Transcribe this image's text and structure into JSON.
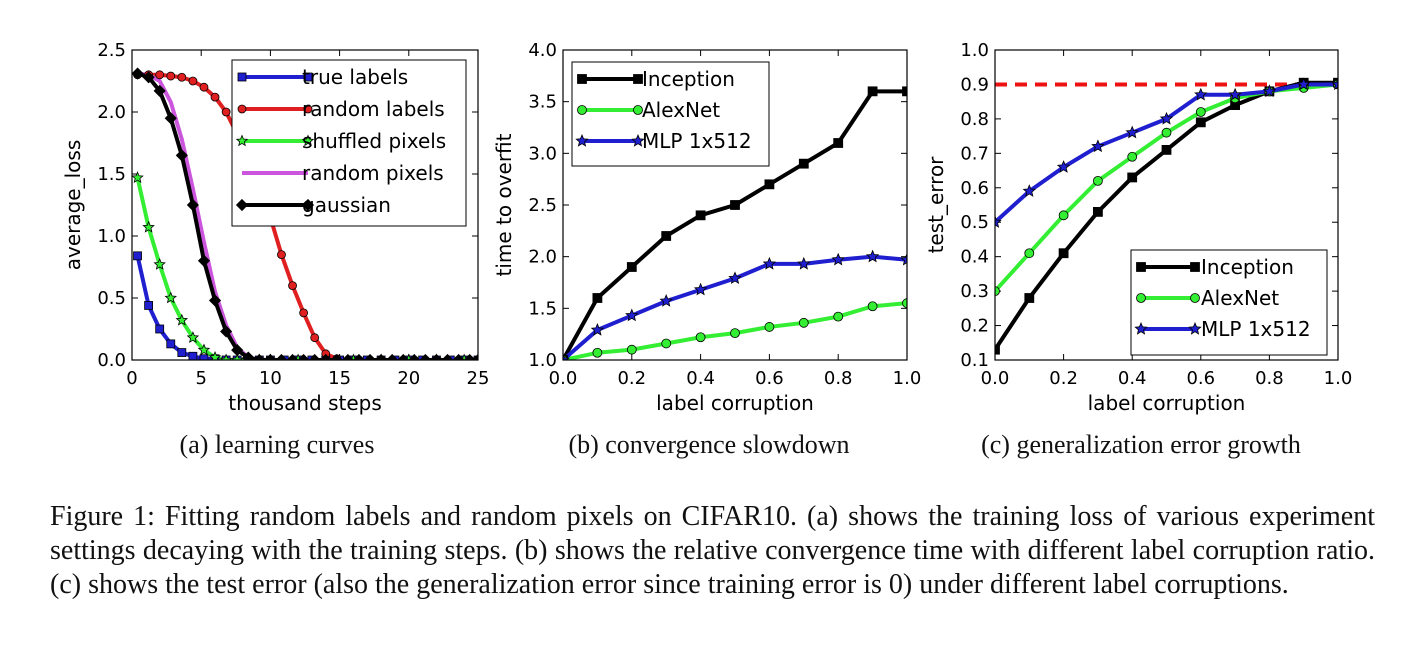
{
  "caption": "Figure 1: Fitting random labels and random pixels on CIFAR10. (a) shows the training loss of various experiment settings decaying with the training steps. (b) shows the relative convergence time with different label corruption ratio. (c) shows the test error (also the generalization error since training error is 0) under different label corruptions.",
  "chart_data": [
    {
      "type": "line",
      "subcaption": "(a) learning curves",
      "xlabel": "thousand steps",
      "ylabel": "average_loss",
      "xlim": [
        0,
        25
      ],
      "ylim": [
        0,
        2.5
      ],
      "xticks": [
        0,
        5,
        10,
        15,
        20,
        25
      ],
      "yticks": [
        0.0,
        0.5,
        1.0,
        1.5,
        2.0,
        2.5
      ],
      "grid": false,
      "legend": "top-right",
      "series": [
        {
          "name": "true labels",
          "color": "#1f1fd0",
          "marker": "square",
          "x": [
            0.4,
            1.2,
            2.0,
            2.8,
            3.6,
            4.4,
            5.2,
            6.0,
            6.8,
            7.6,
            8.4,
            9.2,
            10,
            11,
            12,
            13,
            14,
            15,
            16,
            17,
            18,
            19,
            20,
            21,
            22,
            23,
            24,
            25
          ],
          "y": [
            0.84,
            0.44,
            0.25,
            0.13,
            0.06,
            0.03,
            0.01,
            0.01,
            0.0,
            0.0,
            0.0,
            0.0,
            0.0,
            0.0,
            0.0,
            0.0,
            0.0,
            0.0,
            0.0,
            0.0,
            0.0,
            0.0,
            0.0,
            0.0,
            0.0,
            0.0,
            0.0,
            0.0
          ]
        },
        {
          "name": "random labels",
          "color": "#e02020",
          "marker": "circle",
          "x": [
            0.4,
            1.2,
            2.0,
            2.8,
            3.6,
            4.4,
            5.2,
            6.0,
            6.8,
            7.6,
            8.4,
            9.2,
            10.0,
            10.8,
            11.6,
            12.4,
            13.2,
            14.0,
            14.8,
            15.6,
            16.4,
            17.2,
            18.0,
            18.8,
            19.6,
            20.4,
            21.2,
            22.0,
            22.8,
            23.6,
            24.4,
            25.0
          ],
          "y": [
            2.3,
            2.3,
            2.3,
            2.29,
            2.28,
            2.25,
            2.2,
            2.12,
            2.0,
            1.82,
            1.6,
            1.38,
            1.15,
            0.85,
            0.6,
            0.38,
            0.18,
            0.05,
            0.01,
            0.0,
            0.0,
            0.0,
            0.0,
            0.0,
            0.0,
            0.0,
            0.0,
            0.0,
            0.0,
            0.0,
            0.0,
            0.0
          ]
        },
        {
          "name": "shuffled pixels",
          "color": "#33ee33",
          "marker": "star",
          "x": [
            0.4,
            1.2,
            2.0,
            2.8,
            3.6,
            4.4,
            5.2,
            6.0,
            6.8,
            7.6,
            8.4,
            9.2,
            10,
            12,
            14,
            16,
            18,
            20,
            22,
            24,
            25
          ],
          "y": [
            1.47,
            1.07,
            0.77,
            0.5,
            0.32,
            0.18,
            0.08,
            0.02,
            0.0,
            0.0,
            0.0,
            0.0,
            0.0,
            0.0,
            0.0,
            0.0,
            0.0,
            0.0,
            0.0,
            0.0,
            0.0
          ]
        },
        {
          "name": "random pixels",
          "color": "#cc55dd",
          "marker": "none",
          "x": [
            0.4,
            1.2,
            2.0,
            2.8,
            3.6,
            4.4,
            5.2,
            6.0,
            6.8,
            7.6,
            8.4,
            9.2,
            10,
            12,
            14,
            16,
            18,
            20,
            22,
            24,
            25
          ],
          "y": [
            2.31,
            2.3,
            2.25,
            2.08,
            1.78,
            1.38,
            0.95,
            0.55,
            0.28,
            0.1,
            0.02,
            0.0,
            0.0,
            0.0,
            0.0,
            0.0,
            0.0,
            0.0,
            0.0,
            0.0,
            0.0
          ]
        },
        {
          "name": "gaussian",
          "color": "#000000",
          "marker": "diamond",
          "x": [
            0.4,
            1.2,
            2.0,
            2.8,
            3.6,
            4.4,
            5.2,
            6.0,
            6.8,
            7.6,
            8.4,
            9.2,
            10.0,
            10.8,
            11.6,
            12.4,
            13.2,
            14.0,
            14.8,
            15.6,
            16.4,
            17.2,
            18.0,
            18.8,
            19.6,
            20.4,
            21.2,
            22.0,
            22.8,
            23.6,
            24.4,
            25.0
          ],
          "y": [
            2.31,
            2.28,
            2.17,
            1.95,
            1.65,
            1.25,
            0.8,
            0.48,
            0.23,
            0.08,
            0.02,
            0.0,
            0.0,
            0.0,
            0.0,
            0.0,
            0.0,
            0.0,
            0.0,
            0.0,
            0.0,
            0.0,
            0.0,
            0.0,
            0.0,
            0.0,
            0.0,
            0.0,
            0.0,
            0.0,
            0.0,
            0.0
          ]
        }
      ]
    },
    {
      "type": "line",
      "subcaption": "(b) convergence slowdown",
      "xlabel": "label corruption",
      "ylabel": "time to overfit",
      "xlim": [
        0.0,
        1.0
      ],
      "ylim": [
        1.0,
        4.0
      ],
      "xticks": [
        0.0,
        0.2,
        0.4,
        0.6,
        0.8,
        1.0
      ],
      "yticks": [
        1.0,
        1.5,
        2.0,
        2.5,
        3.0,
        3.5,
        4.0
      ],
      "grid": false,
      "legend": "top-left",
      "series": [
        {
          "name": "Inception",
          "color": "#000000",
          "marker": "square",
          "x": [
            0.0,
            0.1,
            0.2,
            0.3,
            0.4,
            0.5,
            0.6,
            0.7,
            0.8,
            0.9,
            1.0
          ],
          "y": [
            1.0,
            1.6,
            1.9,
            2.2,
            2.4,
            2.5,
            2.7,
            2.9,
            3.1,
            3.6,
            3.6
          ]
        },
        {
          "name": "AlexNet",
          "color": "#33ee33",
          "marker": "circle",
          "x": [
            0.0,
            0.1,
            0.2,
            0.3,
            0.4,
            0.5,
            0.6,
            0.7,
            0.8,
            0.9,
            1.0
          ],
          "y": [
            1.0,
            1.07,
            1.1,
            1.16,
            1.22,
            1.26,
            1.32,
            1.36,
            1.42,
            1.52,
            1.55
          ]
        },
        {
          "name": "MLP 1x512",
          "color": "#1f1fd0",
          "marker": "star",
          "x": [
            0.0,
            0.1,
            0.2,
            0.3,
            0.4,
            0.5,
            0.6,
            0.7,
            0.8,
            0.9,
            1.0
          ],
          "y": [
            1.0,
            1.29,
            1.43,
            1.57,
            1.68,
            1.79,
            1.93,
            1.93,
            1.97,
            2.0,
            1.97
          ]
        }
      ]
    },
    {
      "type": "line",
      "subcaption": "(c) generalization error growth",
      "xlabel": "label corruption",
      "ylabel": "test_error",
      "xlim": [
        0.0,
        1.0
      ],
      "ylim": [
        0.1,
        1.0
      ],
      "xticks": [
        0.0,
        0.2,
        0.4,
        0.6,
        0.8,
        1.0
      ],
      "yticks": [
        0.1,
        0.2,
        0.3,
        0.4,
        0.5,
        0.6,
        0.7,
        0.8,
        0.9,
        1.0
      ],
      "grid": false,
      "legend": "bottom-right",
      "reference_line": {
        "y": 0.9,
        "color": "#ee1111",
        "style": "dashed"
      },
      "series": [
        {
          "name": "Inception",
          "color": "#000000",
          "marker": "square",
          "x": [
            0.0,
            0.1,
            0.2,
            0.3,
            0.4,
            0.5,
            0.6,
            0.7,
            0.8,
            0.9,
            1.0
          ],
          "y": [
            0.13,
            0.28,
            0.41,
            0.53,
            0.63,
            0.71,
            0.79,
            0.84,
            0.88,
            0.905,
            0.905
          ]
        },
        {
          "name": "AlexNet",
          "color": "#33ee33",
          "marker": "circle",
          "x": [
            0.0,
            0.1,
            0.2,
            0.3,
            0.4,
            0.5,
            0.6,
            0.7,
            0.8,
            0.9,
            1.0
          ],
          "y": [
            0.3,
            0.41,
            0.52,
            0.62,
            0.69,
            0.76,
            0.82,
            0.86,
            0.88,
            0.89,
            0.9
          ]
        },
        {
          "name": "MLP 1x512",
          "color": "#1f1fd0",
          "marker": "star",
          "x": [
            0.0,
            0.1,
            0.2,
            0.3,
            0.4,
            0.5,
            0.6,
            0.7,
            0.8,
            0.9,
            1.0
          ],
          "y": [
            0.5,
            0.59,
            0.66,
            0.72,
            0.76,
            0.8,
            0.87,
            0.87,
            0.88,
            0.9,
            0.9
          ]
        }
      ]
    }
  ]
}
